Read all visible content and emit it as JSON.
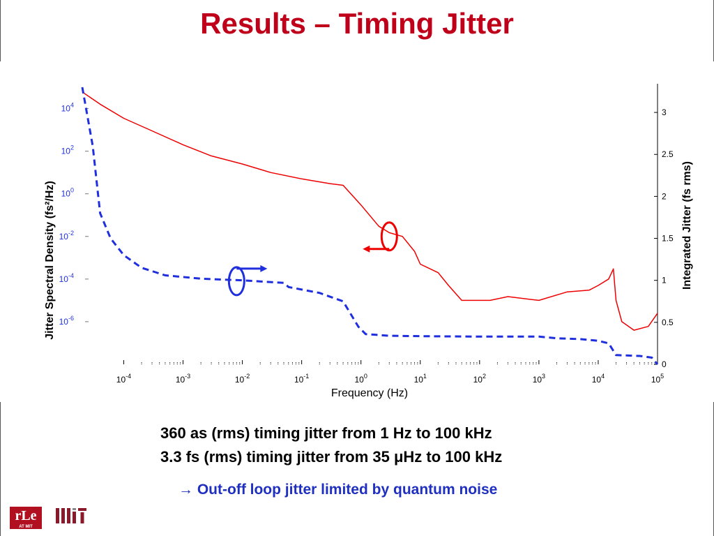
{
  "slide": {
    "title": "Results – Timing Jitter",
    "bullets": [
      "360 as (rms) timing jitter from 1 Hz to 100 kHz",
      "3.3 fs (rms) timing jitter from 35 μHz to 100 kHz"
    ],
    "conclusion_arrow": "→",
    "conclusion": "Out-off loop jitter limited by quantum noise",
    "logos": {
      "rle": "rLe",
      "rle_sub": "AT MIT",
      "mit": "MIT"
    },
    "colors": {
      "title": "#c0001a",
      "psd": "#ee0000",
      "integrated": "#1f2fdd",
      "conclusion": "#1f2fbf"
    }
  },
  "chart_data": {
    "type": "line",
    "xlabel": "Frequency (Hz)",
    "ylabel_left": "Jitter Spectral Density (fs²/Hz)",
    "ylabel_right": "Integrated Jitter (fs rms)",
    "x_scale": "log",
    "xlim": [
      2e-05,
      100000
    ],
    "x_ticks": [
      0.0001,
      0.001,
      0.01,
      0.1,
      1,
      10,
      100,
      1000,
      10000,
      100000
    ],
    "x_tick_labels": [
      {
        "base": "10",
        "exp": "-4"
      },
      {
        "base": "10",
        "exp": "-3"
      },
      {
        "base": "10",
        "exp": "-2"
      },
      {
        "base": "10",
        "exp": "-1"
      },
      {
        "base": "10",
        "exp": "0"
      },
      {
        "base": "10",
        "exp": "1"
      },
      {
        "base": "10",
        "exp": "2"
      },
      {
        "base": "10",
        "exp": "3"
      },
      {
        "base": "10",
        "exp": "4"
      },
      {
        "base": "10",
        "exp": "5"
      }
    ],
    "y_left_scale": "log",
    "y_left_lim": [
      1e-08,
      100000
    ],
    "y_left_ticks": [
      1e-06,
      0.0001,
      0.01,
      1,
      100,
      10000
    ],
    "y_left_tick_labels": [
      {
        "base": "10",
        "exp": "-6"
      },
      {
        "base": "10",
        "exp": "-4"
      },
      {
        "base": "10",
        "exp": "-2"
      },
      {
        "base": "10",
        "exp": "0"
      },
      {
        "base": "10",
        "exp": "2"
      },
      {
        "base": "10",
        "exp": "4"
      }
    ],
    "y_right_lim": [
      0,
      3.3
    ],
    "y_right_ticks": [
      0,
      0.5,
      1,
      1.5,
      2,
      2.5,
      3
    ],
    "y_right_tick_labels": [
      "0",
      "0.5",
      "1",
      "1.5",
      "2",
      "2.5",
      "3"
    ],
    "grid": false,
    "series": [
      {
        "axis": "left",
        "style": "solid",
        "color": "#ee0000",
        "points": [
          [
            2e-05,
            60000
          ],
          [
            4e-05,
            16000
          ],
          [
            0.0001,
            3500
          ],
          [
            0.0003,
            900
          ],
          [
            0.001,
            200
          ],
          [
            0.003,
            60
          ],
          [
            0.01,
            25
          ],
          [
            0.03,
            10
          ],
          [
            0.1,
            5
          ],
          [
            0.3,
            3
          ],
          [
            0.5,
            2.5
          ],
          [
            1,
            0.3
          ],
          [
            2,
            0.03
          ],
          [
            3,
            0.015
          ],
          [
            5,
            0.01
          ],
          [
            8,
            0.002
          ],
          [
            10,
            0.0005
          ],
          [
            20,
            0.0002
          ],
          [
            30,
            5e-05
          ],
          [
            50,
            1e-05
          ],
          [
            80,
            1e-05
          ],
          [
            150,
            1e-05
          ],
          [
            300,
            1.5e-05
          ],
          [
            1000,
            1e-05
          ],
          [
            3000,
            2.5e-05
          ],
          [
            7000,
            3e-05
          ],
          [
            10000,
            5e-05
          ],
          [
            15000,
            0.0001
          ],
          [
            18000,
            0.0003
          ],
          [
            20000,
            1e-05
          ],
          [
            25000,
            1e-06
          ],
          [
            40000,
            4e-07
          ],
          [
            70000,
            6e-07
          ],
          [
            100000,
            2.5e-06
          ]
        ]
      },
      {
        "axis": "right",
        "style": "dashed",
        "color": "#1f2fdd",
        "points": [
          [
            2e-05,
            3.3
          ],
          [
            3e-05,
            2.6
          ],
          [
            4e-05,
            1.8
          ],
          [
            6e-05,
            1.5
          ],
          [
            0.0001,
            1.3
          ],
          [
            0.0002,
            1.15
          ],
          [
            0.0005,
            1.06
          ],
          [
            0.002,
            1.02
          ],
          [
            0.01,
            1.0
          ],
          [
            0.05,
            0.97
          ],
          [
            0.06,
            0.92
          ],
          [
            0.2,
            0.85
          ],
          [
            0.5,
            0.75
          ],
          [
            0.9,
            0.45
          ],
          [
            1.2,
            0.36
          ],
          [
            3,
            0.34
          ],
          [
            10,
            0.335
          ],
          [
            100,
            0.33
          ],
          [
            1000,
            0.33
          ],
          [
            2000,
            0.31
          ],
          [
            5000,
            0.3
          ],
          [
            10000,
            0.28
          ],
          [
            15000,
            0.25
          ],
          [
            20000,
            0.11
          ],
          [
            50000,
            0.1
          ],
          [
            80000,
            0.08
          ],
          [
            100000,
            0.0
          ]
        ]
      }
    ],
    "annotations": [
      {
        "shape": "ellipse",
        "color": "#1f2fdd",
        "meaning": "integrated curve uses right axis"
      },
      {
        "shape": "ellipse",
        "color": "#ee0000",
        "meaning": "spectral density uses left axis"
      }
    ]
  }
}
